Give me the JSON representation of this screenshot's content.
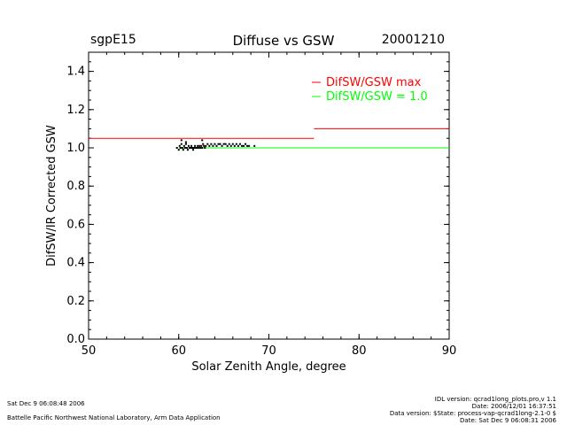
{
  "header": {
    "site": "sgpE15",
    "title": "Diffuse vs GSW",
    "date": "20001210"
  },
  "chart_data": {
    "type": "scatter",
    "xlabel": "Solar Zenith Angle, degree",
    "ylabel": "DifSW/IR Corrected GSW",
    "xlim": [
      50,
      90
    ],
    "ylim": [
      0.0,
      1.5
    ],
    "x_ticks": [
      "50",
      "60",
      "70",
      "80",
      "90"
    ],
    "y_ticks": [
      "0.0",
      "0.2",
      "0.4",
      "0.6",
      "0.8",
      "1.0",
      "1.2",
      "1.4"
    ],
    "grid": false,
    "legend_position": "top-right",
    "series": [
      {
        "name": "DifSW/GSW max",
        "color": "#ff0000",
        "type": "step",
        "segments": [
          {
            "x": [
              50,
              75
            ],
            "y": 1.05
          },
          {
            "x": [
              75,
              90
            ],
            "y": 1.1
          }
        ]
      },
      {
        "name": "DifSW/GSW = 1.0",
        "color": "#00ff00",
        "type": "line",
        "x": [
          60,
          90
        ],
        "y": [
          1.0,
          1.0
        ]
      },
      {
        "color": "#000000",
        "type": "scatter",
        "points": [
          [
            59.8,
            1.0
          ],
          [
            60.0,
            0.99
          ],
          [
            60.1,
            1.01
          ],
          [
            60.2,
            1.0
          ],
          [
            60.3,
            1.02
          ],
          [
            60.4,
            1.0
          ],
          [
            60.5,
            0.99
          ],
          [
            60.6,
            1.01
          ],
          [
            60.7,
            1.0
          ],
          [
            60.8,
            1.02
          ],
          [
            60.9,
            1.0
          ],
          [
            61.0,
            0.99
          ],
          [
            61.1,
            1.01
          ],
          [
            61.2,
            1.0
          ],
          [
            61.3,
            1.0
          ],
          [
            61.4,
            1.01
          ],
          [
            61.5,
            1.0
          ],
          [
            61.6,
            0.99
          ],
          [
            61.7,
            1.0
          ],
          [
            61.8,
            1.01
          ],
          [
            61.9,
            1.0
          ],
          [
            62.0,
            1.0
          ],
          [
            62.1,
            1.01
          ],
          [
            62.2,
            1.0
          ],
          [
            62.3,
            1.01
          ],
          [
            62.4,
            1.0
          ],
          [
            62.5,
            1.01
          ],
          [
            62.6,
            1.0
          ],
          [
            62.7,
            1.02
          ],
          [
            62.8,
            1.01
          ],
          [
            62.9,
            1.0
          ],
          [
            63.0,
            1.01
          ],
          [
            63.2,
            1.02
          ],
          [
            63.4,
            1.01
          ],
          [
            63.6,
            1.02
          ],
          [
            63.8,
            1.01
          ],
          [
            64.0,
            1.02
          ],
          [
            64.2,
            1.01
          ],
          [
            64.4,
            1.02
          ],
          [
            64.6,
            1.02
          ],
          [
            64.8,
            1.01
          ],
          [
            65.0,
            1.02
          ],
          [
            65.2,
            1.02
          ],
          [
            65.4,
            1.01
          ],
          [
            65.6,
            1.02
          ],
          [
            65.8,
            1.01
          ],
          [
            66.0,
            1.02
          ],
          [
            66.2,
            1.01
          ],
          [
            66.4,
            1.02
          ],
          [
            66.6,
            1.01
          ],
          [
            66.8,
            1.02
          ],
          [
            67.0,
            1.01
          ],
          [
            67.2,
            1.01
          ],
          [
            67.4,
            1.02
          ],
          [
            67.6,
            1.01
          ],
          [
            67.8,
            1.01
          ],
          [
            68.4,
            1.01
          ],
          [
            60.3,
            1.04
          ],
          [
            60.8,
            1.03
          ],
          [
            62.6,
            1.04
          ]
        ]
      }
    ]
  },
  "footer": {
    "left_line1": "Sat Dec  9 06:08:48 2006",
    "left_line2": "Battelle Pacific Northwest National Laboratory, Arm Data Application",
    "right_line1": "IDL version: qcrad1long_plots.pro,v 1.1",
    "right_line2": "Date: 2006/12/01 16:37:51",
    "right_line3": "Data version: $State: process-vap-qcrad1long-2.1-0 $",
    "right_line4": "Date: Sat Dec  9 06:08:31 2006"
  }
}
